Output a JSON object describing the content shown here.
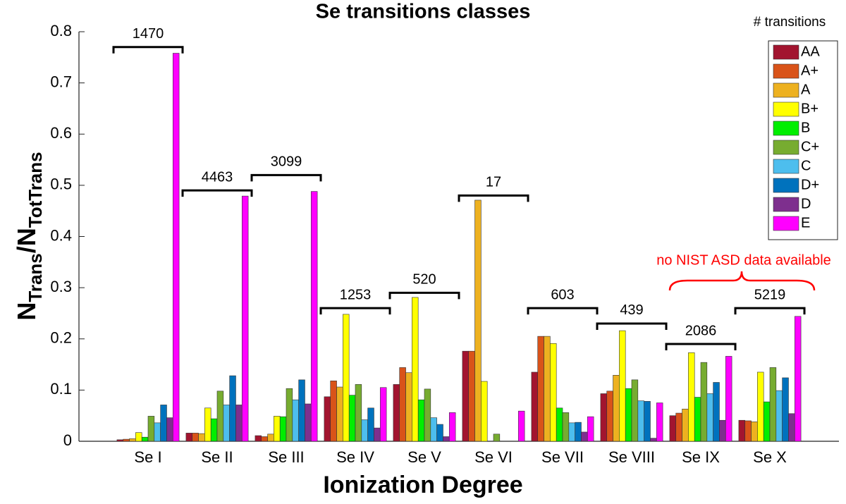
{
  "chart_data": {
    "type": "bar",
    "title": "Se transitions classes",
    "xlabel": "Ionization Degree",
    "ylabel_parts": [
      "N",
      "Trans",
      "/N",
      "TotTrans"
    ],
    "legend_title": "# transitions",
    "legend_position": "upper right",
    "categories": [
      "Se I",
      "Se II",
      "Se III",
      "Se IV",
      "Se V",
      "Se VI",
      "Se VII",
      "Se VIII",
      "Se IX",
      "Se X"
    ],
    "series": [
      {
        "name": "AA",
        "color": "#a2142f",
        "values": [
          0.003,
          0.016,
          0.011,
          0.087,
          0.111,
          0.176,
          0.135,
          0.093,
          0.05,
          0.041
        ]
      },
      {
        "name": "A+",
        "color": "#d95319",
        "values": [
          0.004,
          0.016,
          0.009,
          0.118,
          0.144,
          0.176,
          0.205,
          0.098,
          0.055,
          0.04
        ]
      },
      {
        "name": "A",
        "color": "#edb120",
        "values": [
          0.005,
          0.015,
          0.014,
          0.106,
          0.134,
          0.471,
          0.205,
          0.129,
          0.063,
          0.038
        ]
      },
      {
        "name": "B+",
        "color": "#ffff00",
        "values": [
          0.017,
          0.065,
          0.049,
          0.248,
          0.281,
          0.117,
          0.191,
          0.216,
          0.173,
          0.135
        ]
      },
      {
        "name": "B",
        "color": "#00ee00",
        "values": [
          0.008,
          0.044,
          0.048,
          0.09,
          0.081,
          0,
          0.065,
          0.103,
          0.086,
          0.077
        ]
      },
      {
        "name": "C+",
        "color": "#77ac30",
        "values": [
          0.049,
          0.098,
          0.103,
          0.111,
          0.102,
          0.014,
          0.056,
          0.12,
          0.154,
          0.144
        ]
      },
      {
        "name": "C",
        "color": "#4dbeee",
        "values": [
          0.036,
          0.071,
          0.081,
          0.042,
          0.046,
          0,
          0.036,
          0.079,
          0.093,
          0.099
        ]
      },
      {
        "name": "D+",
        "color": "#0072bd",
        "values": [
          0.071,
          0.128,
          0.12,
          0.065,
          0.033,
          0,
          0.037,
          0.078,
          0.115,
          0.124
        ]
      },
      {
        "name": "D",
        "color": "#7e2f8e",
        "values": [
          0.046,
          0.071,
          0.073,
          0.026,
          0.009,
          0,
          0.018,
          0.006,
          0.041,
          0.054
        ]
      },
      {
        "name": "E",
        "color": "#ff00ff",
        "values": [
          0.758,
          0.479,
          0.488,
          0.105,
          0.056,
          0.059,
          0.048,
          0.075,
          0.166,
          0.244
        ]
      }
    ],
    "transition_counts": [
      1470,
      4463,
      3099,
      1253,
      520,
      17,
      603,
      439,
      2086,
      5219
    ],
    "bracket_levels": [
      0.77,
      0.49,
      0.52,
      0.26,
      0.29,
      0.48,
      0.26,
      0.23,
      0.19,
      0.26
    ],
    "annotation": "no NIST ASD data available",
    "annotation_color": "#ff0000",
    "xlim": [
      0,
      11
    ],
    "ylim": [
      0,
      0.8
    ],
    "yticks": [
      0,
      0.1,
      0.2,
      0.3,
      0.4,
      0.5,
      0.6,
      0.7,
      0.8
    ],
    "grid": false
  }
}
